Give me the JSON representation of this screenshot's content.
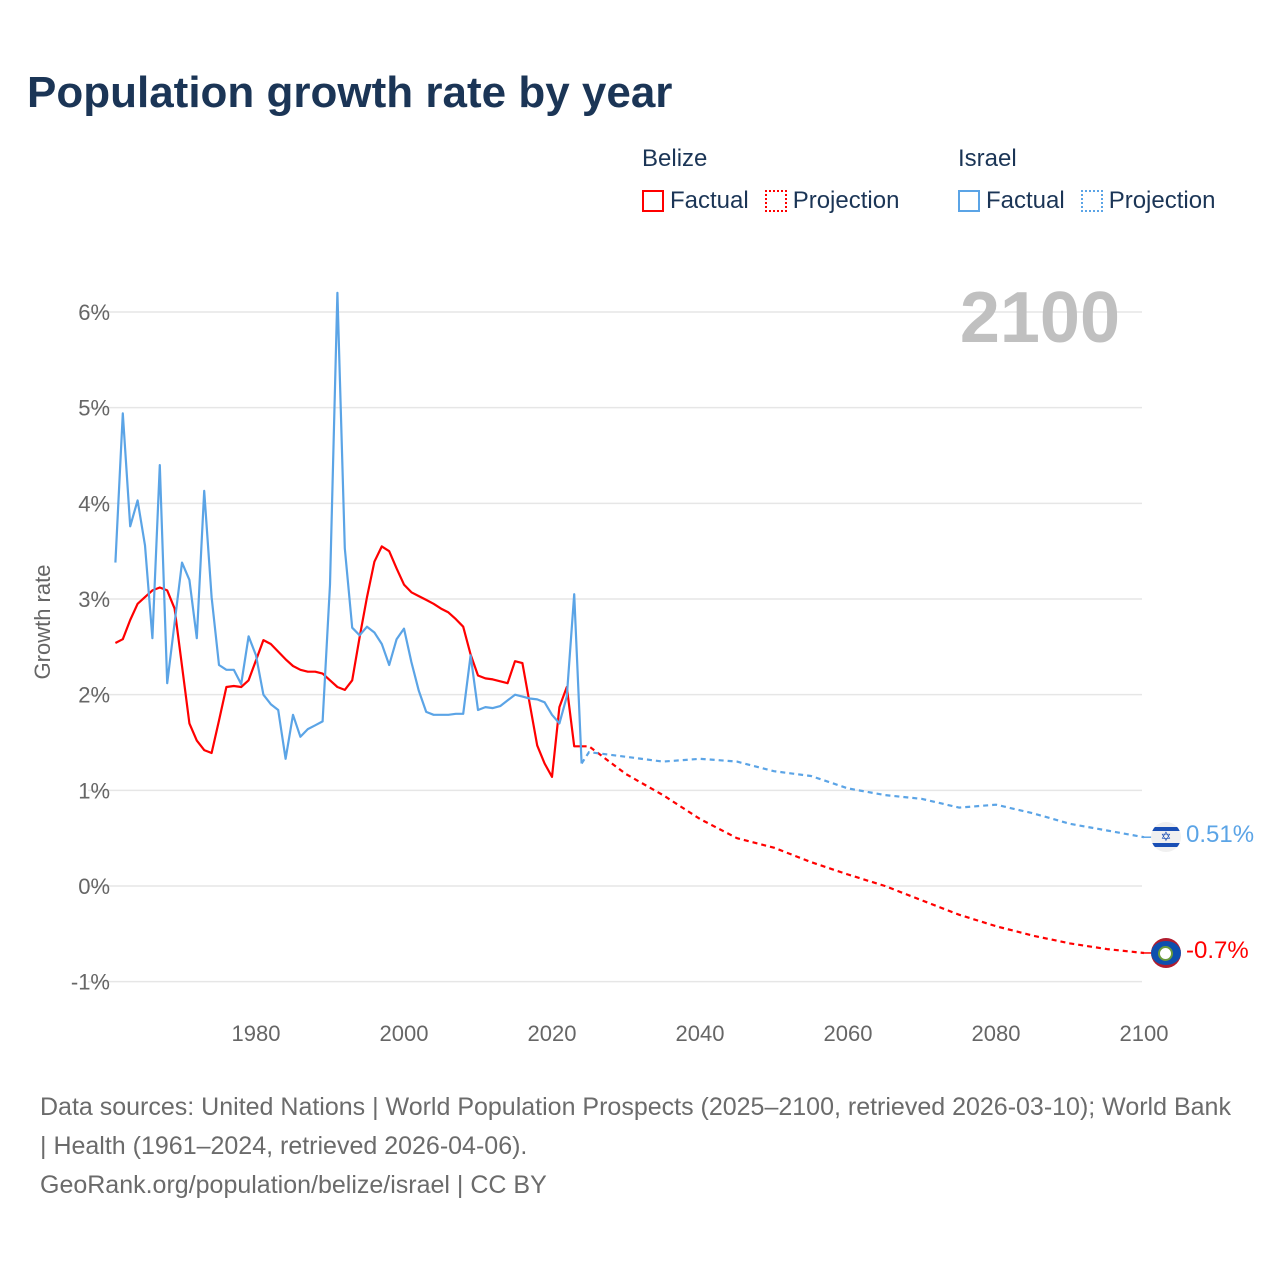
{
  "title": "Population growth rate by year",
  "year_label": "2100",
  "legend": {
    "groups": [
      {
        "name": "Belize",
        "factual": "Factual",
        "projection": "Projection",
        "color": "#ff0000"
      },
      {
        "name": "Israel",
        "factual": "Factual",
        "projection": "Projection",
        "color": "#5ba4e6"
      }
    ]
  },
  "end_labels": {
    "israel": "0.51%",
    "belize": "-0.7%"
  },
  "footer": {
    "sources": "Data sources: United Nations | World Population Prospects (2025–2100, retrieved 2026-03-10); World Bank | Health (1961–2024, retrieved 2026-04-06).",
    "link": "GeoRank.org/population/belize/israel | CC BY"
  },
  "chart_data": {
    "type": "line",
    "title": "Population growth rate by year",
    "xlabel": "",
    "ylabel": "Growth rate",
    "xlim": [
      1961,
      2100
    ],
    "ylim": [
      -1.3,
      6.3
    ],
    "x_ticks": [
      "1980",
      "2000",
      "2020",
      "2040",
      "2060",
      "2080",
      "2100"
    ],
    "y_ticks": [
      "6%",
      "5%",
      "4%",
      "3%",
      "2%",
      "1%",
      "0%",
      "-1%"
    ],
    "grid": true,
    "legend_position": "top-right",
    "series": [
      {
        "name": "Belize Factual",
        "color": "#ff0000",
        "style": "solid",
        "x": [
          1961,
          1962,
          1963,
          1964,
          1965,
          1966,
          1967,
          1968,
          1969,
          1970,
          1971,
          1972,
          1973,
          1974,
          1975,
          1976,
          1977,
          1978,
          1979,
          1980,
          1981,
          1982,
          1983,
          1984,
          1985,
          1986,
          1987,
          1988,
          1989,
          1990,
          1991,
          1992,
          1993,
          1994,
          1995,
          1996,
          1997,
          1998,
          1999,
          2000,
          2001,
          2002,
          2003,
          2004,
          2005,
          2006,
          2007,
          2008,
          2009,
          2010,
          2011,
          2012,
          2013,
          2014,
          2015,
          2016,
          2017,
          2018,
          2019,
          2020,
          2021,
          2022,
          2023,
          2024
        ],
        "y": [
          2.54,
          2.58,
          2.78,
          2.95,
          3.02,
          3.09,
          3.12,
          3.09,
          2.9,
          2.3,
          1.7,
          1.52,
          1.42,
          1.39,
          1.73,
          2.08,
          2.09,
          2.08,
          2.15,
          2.36,
          2.57,
          2.53,
          2.45,
          2.37,
          2.3,
          2.26,
          2.24,
          2.24,
          2.22,
          2.15,
          2.08,
          2.05,
          2.15,
          2.6,
          3.02,
          3.39,
          3.55,
          3.5,
          3.32,
          3.15,
          3.07,
          3.03,
          2.99,
          2.95,
          2.9,
          2.86,
          2.79,
          2.71,
          2.42,
          2.2,
          2.17,
          2.16,
          2.14,
          2.12,
          2.35,
          2.33,
          1.9,
          1.47,
          1.28,
          1.14,
          1.87,
          2.08,
          1.46,
          1.46
        ]
      },
      {
        "name": "Belize Projection",
        "color": "#ff0000",
        "style": "dotted",
        "x": [
          2024,
          2025,
          2030,
          2035,
          2040,
          2045,
          2050,
          2055,
          2060,
          2065,
          2070,
          2075,
          2080,
          2085,
          2090,
          2095,
          2100
        ],
        "y": [
          1.46,
          1.46,
          1.17,
          0.95,
          0.7,
          0.5,
          0.4,
          0.25,
          0.12,
          0.0,
          -0.15,
          -0.3,
          -0.42,
          -0.52,
          -0.6,
          -0.66,
          -0.7
        ]
      },
      {
        "name": "Israel Factual",
        "color": "#5ba4e6",
        "style": "solid",
        "x": [
          1961,
          1962,
          1963,
          1964,
          1965,
          1966,
          1967,
          1968,
          1969,
          1970,
          1971,
          1972,
          1973,
          1974,
          1975,
          1976,
          1977,
          1978,
          1979,
          1980,
          1981,
          1982,
          1983,
          1984,
          1985,
          1986,
          1987,
          1988,
          1989,
          1990,
          1991,
          1992,
          1993,
          1994,
          1995,
          1996,
          1997,
          1998,
          1999,
          2000,
          2001,
          2002,
          2003,
          2004,
          2005,
          2006,
          2007,
          2008,
          2009,
          2010,
          2011,
          2012,
          2013,
          2014,
          2015,
          2016,
          2017,
          2018,
          2019,
          2020,
          2021,
          2022,
          2023,
          2024
        ],
        "y": [
          3.38,
          4.94,
          3.76,
          4.03,
          3.56,
          2.59,
          4.4,
          2.12,
          2.75,
          3.38,
          3.2,
          2.59,
          4.13,
          3.02,
          2.31,
          2.26,
          2.26,
          2.11,
          2.61,
          2.41,
          2.0,
          1.9,
          1.84,
          1.33,
          1.79,
          1.56,
          1.64,
          1.68,
          1.72,
          3.15,
          6.2,
          3.53,
          2.7,
          2.62,
          2.71,
          2.65,
          2.53,
          2.31,
          2.58,
          2.69,
          2.34,
          2.04,
          1.82,
          1.79,
          1.79,
          1.79,
          1.8,
          1.8,
          2.41,
          1.84,
          1.87,
          1.86,
          1.88,
          1.94,
          2.0,
          1.98,
          1.96,
          1.95,
          1.92,
          1.79,
          1.7,
          1.98,
          3.05,
          1.28
        ]
      },
      {
        "name": "Israel Projection",
        "color": "#5ba4e6",
        "style": "dotted",
        "x": [
          2024,
          2025,
          2030,
          2035,
          2040,
          2045,
          2050,
          2055,
          2060,
          2065,
          2070,
          2075,
          2080,
          2085,
          2090,
          2095,
          2100
        ],
        "y": [
          1.28,
          1.4,
          1.35,
          1.3,
          1.33,
          1.3,
          1.2,
          1.15,
          1.02,
          0.95,
          0.91,
          0.82,
          0.85,
          0.76,
          0.65,
          0.58,
          0.51
        ]
      }
    ]
  }
}
